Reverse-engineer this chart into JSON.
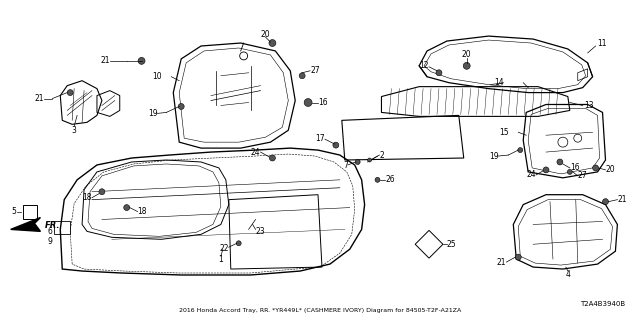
{
  "title": "2016 Honda Accord Tray, RR. *YR449L* (CASHMERE IVORY) Diagram for 84505-T2F-A21ZA",
  "diagram_code": "T2A4B3940B",
  "background_color": "#ffffff",
  "line_color": "#000000",
  "text_color": "#000000",
  "fig_width": 6.4,
  "fig_height": 3.2,
  "dpi": 100,
  "subtitle": "2016 Honda Accord Tray, RR. *YR449L* (CASHMERE IVORY) Diagram for 84505-T2F-A21ZA"
}
